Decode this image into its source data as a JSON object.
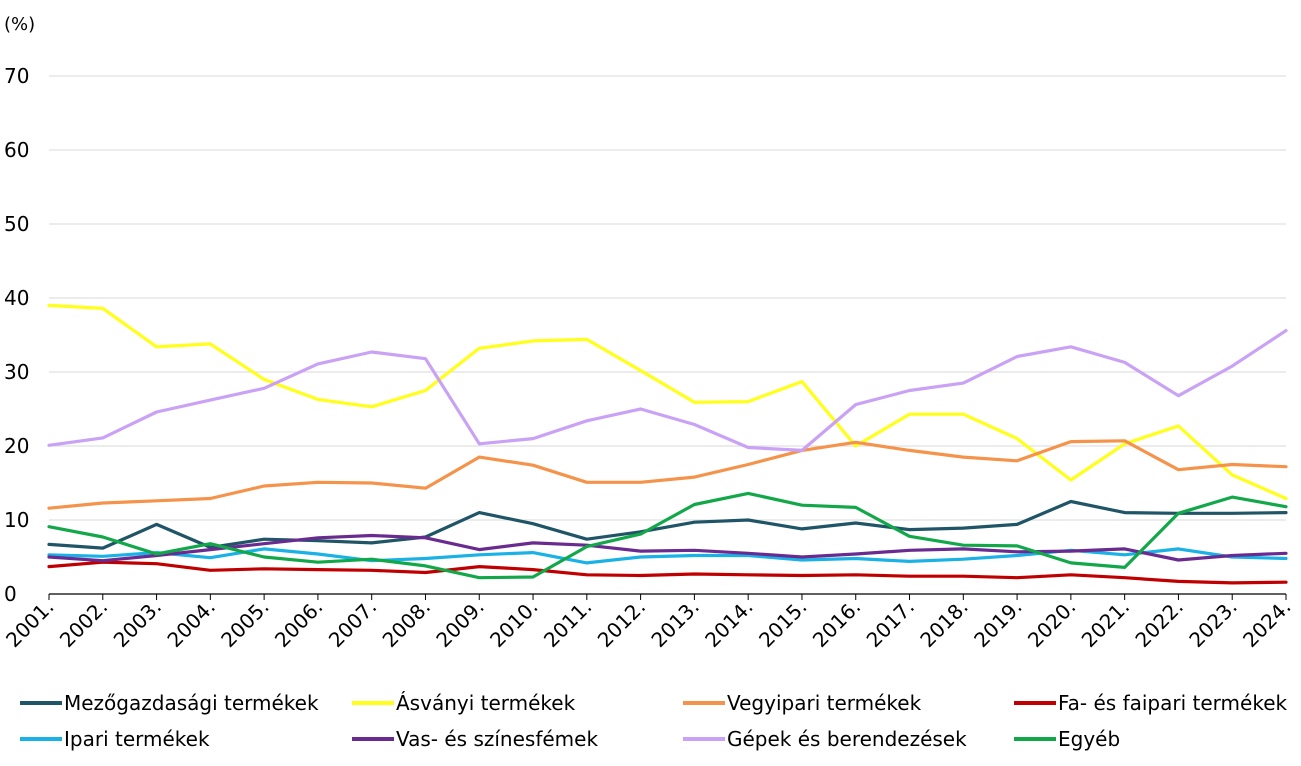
{
  "chart_data": {
    "type": "line",
    "ylabel": "(%)",
    "ylim": [
      0,
      70
    ],
    "yticks": [
      0,
      10,
      20,
      30,
      40,
      50,
      60,
      70
    ],
    "grid": true,
    "legend_position": "bottom",
    "categories": [
      "2001.",
      "2002.",
      "2003.",
      "2004.",
      "2005.",
      "2006.",
      "2007.",
      "2008.",
      "2009.",
      "2010.",
      "2011.",
      "2012.",
      "2013.",
      "2014.",
      "2015.",
      "2016.",
      "2017.",
      "2018.",
      "2019.",
      "2020.",
      "2021.",
      "2022.",
      "2023.",
      "2024."
    ],
    "series": [
      {
        "name": "Mezőgazdasági termékek",
        "color": "#1f5566",
        "values": [
          6.7,
          6.2,
          9.4,
          6.3,
          7.4,
          7.2,
          6.9,
          7.7,
          11.0,
          9.5,
          7.4,
          8.4,
          9.7,
          10.0,
          8.8,
          9.6,
          8.7,
          8.9,
          9.4,
          12.5,
          11.0,
          10.9,
          10.9,
          11.0
        ]
      },
      {
        "name": "Ásványi termékek",
        "color": "#ffff1a",
        "values": [
          39.0,
          38.6,
          33.4,
          33.8,
          29.0,
          26.3,
          25.3,
          27.5,
          33.2,
          34.2,
          34.4,
          30.2,
          25.9,
          26.0,
          28.7,
          20.0,
          24.3,
          24.3,
          21.0,
          15.4,
          20.3,
          22.7,
          16.1,
          12.9
        ]
      },
      {
        "name": "Vegyipari termékek",
        "color": "#f5934b",
        "values": [
          11.6,
          12.3,
          12.6,
          12.9,
          14.6,
          15.1,
          15.0,
          14.3,
          18.5,
          17.4,
          15.1,
          15.1,
          15.8,
          17.5,
          19.4,
          20.5,
          19.4,
          18.5,
          18.0,
          20.6,
          20.7,
          16.8,
          17.5,
          17.2
        ]
      },
      {
        "name": "Fa- és faipari termékek",
        "color": "#c00000",
        "values": [
          3.7,
          4.3,
          4.1,
          3.2,
          3.4,
          3.3,
          3.2,
          2.9,
          3.7,
          3.3,
          2.6,
          2.5,
          2.7,
          2.6,
          2.5,
          2.6,
          2.4,
          2.4,
          2.2,
          2.6,
          2.2,
          1.7,
          1.5,
          1.6
        ]
      },
      {
        "name": "Ipari termékek",
        "color": "#1ab2e6",
        "values": [
          5.3,
          5.1,
          5.6,
          4.9,
          6.1,
          5.4,
          4.5,
          4.8,
          5.3,
          5.6,
          4.2,
          5.0,
          5.2,
          5.2,
          4.6,
          4.8,
          4.4,
          4.7,
          5.2,
          5.9,
          5.3,
          6.1,
          5.0,
          4.8
        ]
      },
      {
        "name": "Vas- és színesfémek",
        "color": "#6a2b91",
        "values": [
          5.0,
          4.5,
          5.2,
          6.0,
          6.8,
          7.6,
          7.9,
          7.6,
          6.0,
          6.9,
          6.6,
          5.8,
          5.9,
          5.5,
          5.0,
          5.4,
          5.9,
          6.1,
          5.7,
          5.8,
          6.1,
          4.6,
          5.2,
          5.5
        ]
      },
      {
        "name": "Gépek és berendezések",
        "color": "#c9a2f5",
        "values": [
          20.1,
          21.1,
          24.6,
          26.2,
          27.8,
          31.1,
          32.7,
          31.8,
          20.3,
          21.0,
          23.4,
          25.0,
          22.9,
          19.8,
          19.4,
          25.6,
          27.5,
          28.5,
          32.1,
          33.4,
          31.3,
          26.8,
          30.8,
          35.6
        ]
      },
      {
        "name": "Egyéb",
        "color": "#12a84a",
        "values": [
          9.1,
          7.7,
          5.4,
          6.8,
          5.0,
          4.3,
          4.7,
          3.8,
          2.2,
          2.3,
          6.4,
          8.1,
          12.1,
          13.6,
          12.0,
          11.7,
          7.8,
          6.6,
          6.5,
          4.2,
          3.6,
          10.9,
          13.1,
          11.8
        ]
      }
    ]
  }
}
